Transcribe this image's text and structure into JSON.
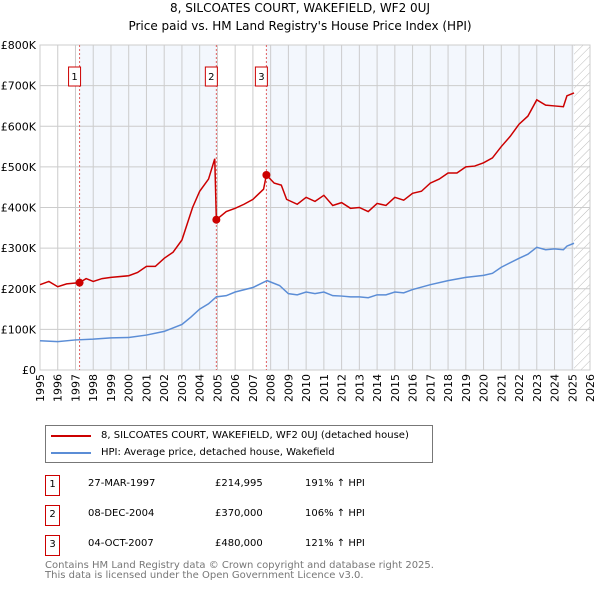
{
  "chart_data": {
    "type": "line",
    "title": "8, SILCOATES COURT, WAKEFIELD, WF2 0UJ",
    "subtitle": "Price paid vs. HM Land Registry's House Price Index (HPI)",
    "xlim": [
      1995,
      2026
    ],
    "ylim": [
      0,
      800000
    ],
    "yticks": [
      {
        "v": 0,
        "label": "£0"
      },
      {
        "v": 100000,
        "label": "£100K"
      },
      {
        "v": 200000,
        "label": "£200K"
      },
      {
        "v": 300000,
        "label": "£300K"
      },
      {
        "v": 400000,
        "label": "£400K"
      },
      {
        "v": 500000,
        "label": "£500K"
      },
      {
        "v": 600000,
        "label": "£600K"
      },
      {
        "v": 700000,
        "label": "£700K"
      },
      {
        "v": 800000,
        "label": "£800K"
      }
    ],
    "xticks": [
      "1995",
      "1996",
      "1997",
      "1998",
      "1999",
      "2000",
      "2001",
      "2002",
      "2003",
      "2004",
      "2005",
      "2006",
      "2007",
      "2008",
      "2009",
      "2010",
      "2011",
      "2012",
      "2013",
      "2014",
      "2015",
      "2016",
      "2017",
      "2018",
      "2019",
      "2020",
      "2021",
      "2022",
      "2023",
      "2024",
      "2025",
      "2026"
    ],
    "grid": true,
    "series": [
      {
        "name": "8, SILCOATES COURT, WAKEFIELD, WF2 0UJ (detached house)",
        "color": "#cc0000",
        "x": [
          1995,
          1995.5,
          1996,
          1996.5,
          1997.23,
          1997.6,
          1998,
          1998.5,
          1999,
          2000,
          2000.5,
          2001,
          2001.5,
          2002,
          2002.5,
          2003,
          2003.3,
          2003.6,
          2004,
          2004.5,
          2004.85,
          2004.94,
          2005.5,
          2006,
          2006.5,
          2007,
          2007.6,
          2007.76,
          2008.2,
          2008.6,
          2008.9,
          2009.5,
          2010,
          2010.5,
          2011,
          2011.5,
          2012,
          2012.5,
          2013,
          2013.5,
          2014,
          2014.5,
          2015,
          2015.5,
          2016,
          2016.5,
          2017,
          2017.5,
          2018,
          2018.5,
          2019,
          2019.5,
          2020,
          2020.5,
          2021,
          2021.5,
          2022,
          2022.5,
          2023,
          2023.5,
          2024,
          2024.5,
          2024.7,
          2025.1
        ],
        "y": [
          210,
          218,
          205,
          212,
          215,
          225,
          218,
          225,
          228,
          232,
          240,
          255,
          255,
          275,
          290,
          320,
          360,
          400,
          440,
          470,
          520,
          370,
          390,
          398,
          408,
          420,
          445,
          480,
          460,
          455,
          420,
          408,
          425,
          415,
          430,
          405,
          412,
          398,
          400,
          390,
          410,
          405,
          425,
          418,
          435,
          440,
          460,
          470,
          485,
          485,
          500,
          502,
          510,
          522,
          550,
          575,
          605,
          625,
          665,
          652,
          650,
          648,
          675,
          682
        ]
      },
      {
        "name": "HPI: Average price, detached house, Wakefield",
        "color": "#5b8dd6",
        "x": [
          1995,
          1996,
          1997,
          1998,
          1999,
          2000,
          2001,
          2002,
          2003,
          2003.5,
          2004,
          2004.5,
          2004.94,
          2005.5,
          2006,
          2007,
          2007.8,
          2008.5,
          2009,
          2009.5,
          2010,
          2010.5,
          2011,
          2011.5,
          2012,
          2012.5,
          2013,
          2013.5,
          2014,
          2014.5,
          2015,
          2015.5,
          2016,
          2017,
          2018,
          2019,
          2020,
          2020.5,
          2021,
          2022,
          2022.5,
          2023,
          2023.5,
          2024,
          2024.5,
          2024.7,
          2025.1
        ],
        "y": [
          72,
          70,
          74,
          76,
          79,
          80,
          86,
          95,
          112,
          130,
          150,
          163,
          180,
          183,
          192,
          203,
          220,
          208,
          188,
          185,
          192,
          188,
          192,
          183,
          182,
          180,
          180,
          178,
          185,
          185,
          192,
          190,
          198,
          210,
          220,
          228,
          233,
          238,
          253,
          275,
          285,
          302,
          296,
          298,
          296,
          305,
          312
        ]
      }
    ],
    "y_unit": "thousands GBP",
    "sales": [
      {
        "n": "1",
        "x": 1997.23,
        "date": "27-MAR-1997",
        "price": "£214,995",
        "value": 214995,
        "hpi": "191% ↑ HPI"
      },
      {
        "n": "2",
        "x": 2004.94,
        "date": "08-DEC-2004",
        "price": "£370,000",
        "value": 370000,
        "hpi": "106% ↑ HPI"
      },
      {
        "n": "3",
        "x": 2007.76,
        "date": "04-OCT-2007",
        "price": "£480,000",
        "value": 480000,
        "hpi": "121% ↑ HPI"
      }
    ],
    "forecast_from": 2025.1,
    "legend_position": "below"
  },
  "footer": {
    "line1": "Contains HM Land Registry data © Crown copyright and database right 2025.",
    "line2": "This data is licensed under the Open Government Licence v3.0."
  }
}
